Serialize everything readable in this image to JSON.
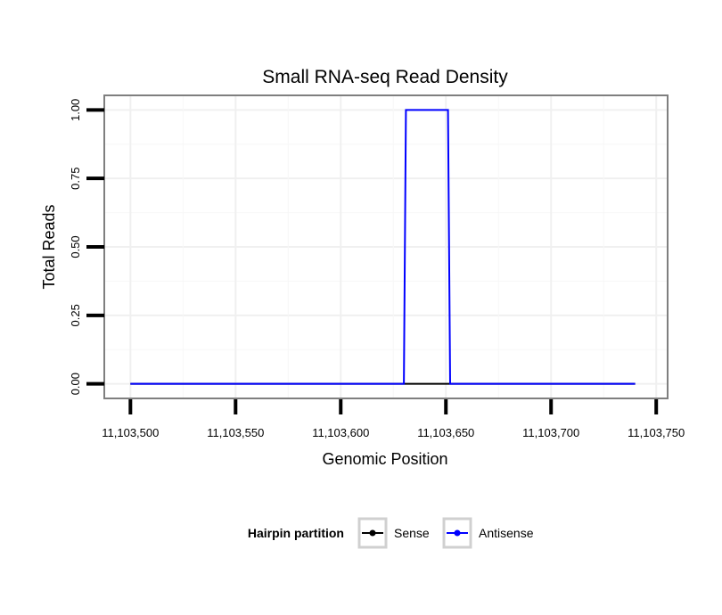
{
  "chart_data": {
    "type": "line",
    "title": "Small RNA-seq Read Density",
    "xlabel": "Genomic Position",
    "ylabel": "Total Reads",
    "xlim": [
      11103488,
      11103755
    ],
    "ylim": [
      -0.05,
      1.05
    ],
    "x_ticks": [
      11103500,
      11103550,
      11103600,
      11103650,
      11103700,
      11103750
    ],
    "x_tick_labels": [
      "11,103,500",
      "11,103,550",
      "11,103,600",
      "11,103,650",
      "11,103,700",
      "11,103,750"
    ],
    "y_ticks": [
      0,
      0.25,
      0.5,
      0.75,
      1.0
    ],
    "y_tick_labels": [
      "0.00",
      "0.25",
      "0.50",
      "0.75",
      "1.00"
    ],
    "grid": true,
    "legend": {
      "title": "Hairpin partition",
      "position": "bottom"
    },
    "series": [
      {
        "name": "Sense",
        "color": "#000000",
        "x": [
          11103500,
          11103740
        ],
        "y": [
          0,
          0
        ]
      },
      {
        "name": "Antisense",
        "color": "#0000ff",
        "x": [
          11103500,
          11103630,
          11103631,
          11103651,
          11103652,
          11103740
        ],
        "y": [
          0,
          0,
          1,
          1,
          0,
          0
        ]
      }
    ]
  }
}
